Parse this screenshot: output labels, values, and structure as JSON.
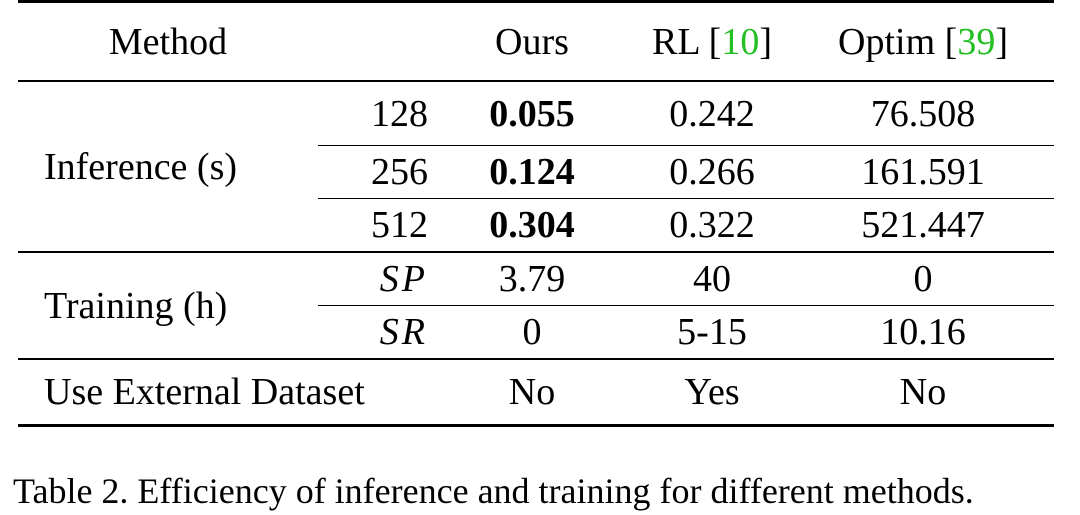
{
  "table": {
    "header": {
      "method": "Method",
      "ours": "Ours",
      "rl": "RL [",
      "rl_cite": "10",
      "rl_close": "]",
      "optim": "Optim [",
      "optim_cite": "39",
      "optim_close": "]"
    },
    "inference": {
      "label": "Inference (s)",
      "rows": [
        {
          "size": "128",
          "ours": "0.055",
          "rl": "0.242",
          "optim": "76.508"
        },
        {
          "size": "256",
          "ours": "0.124",
          "rl": "0.266",
          "optim": "161.591"
        },
        {
          "size": "512",
          "ours": "0.304",
          "rl": "0.322",
          "optim": "521.447"
        }
      ]
    },
    "training": {
      "label": "Training (h)",
      "rows": [
        {
          "sub": "SP",
          "ours": "3.79",
          "rl": "40",
          "optim": "0"
        },
        {
          "sub": "SR",
          "ours": "0",
          "rl": "5-15",
          "optim": "10.16"
        }
      ]
    },
    "external": {
      "label": "Use External Dataset",
      "ours": "No",
      "rl": "Yes",
      "optim": "No"
    }
  },
  "caption": "Table 2. Efficiency of inference and training for different methods.",
  "colors": {
    "citation": "#22c022"
  }
}
